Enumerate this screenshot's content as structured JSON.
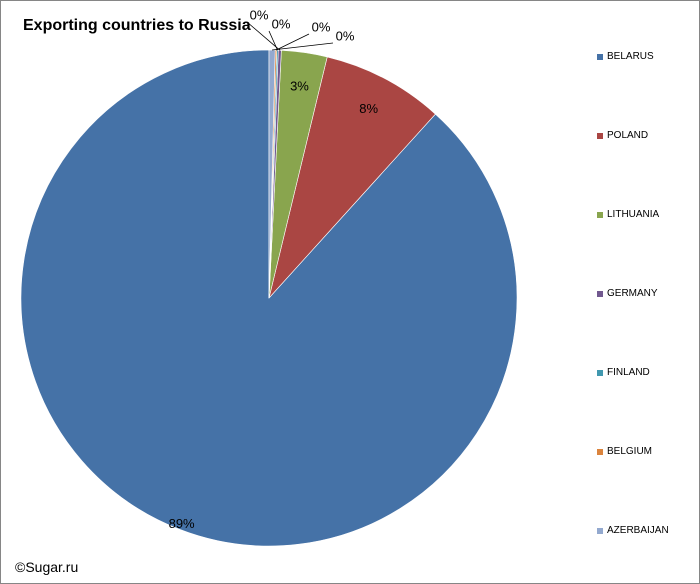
{
  "copyright": "©Sugar.ru",
  "chart_data": {
    "type": "pie",
    "title": "Exporting countries to Russia",
    "categories": [
      "BELARUS",
      "POLAND",
      "LITHUANIA",
      "GERMANY",
      "FINLAND",
      "BELGIUM",
      "AZERBAIJAN"
    ],
    "values": [
      89,
      8,
      3,
      0.2,
      0.1,
      0.1,
      0.4
    ],
    "value_labels": [
      "89%",
      "8%",
      "3%",
      "0%",
      "0%",
      "0%",
      "0%"
    ],
    "colors": [
      "#4572A7",
      "#AA4643",
      "#89A54E",
      "#71588F",
      "#4198AF",
      "#DB843D",
      "#93A9CF"
    ],
    "legend_position": "right",
    "start_angle": "12 o'clock",
    "direction": "counter-clockwise"
  }
}
